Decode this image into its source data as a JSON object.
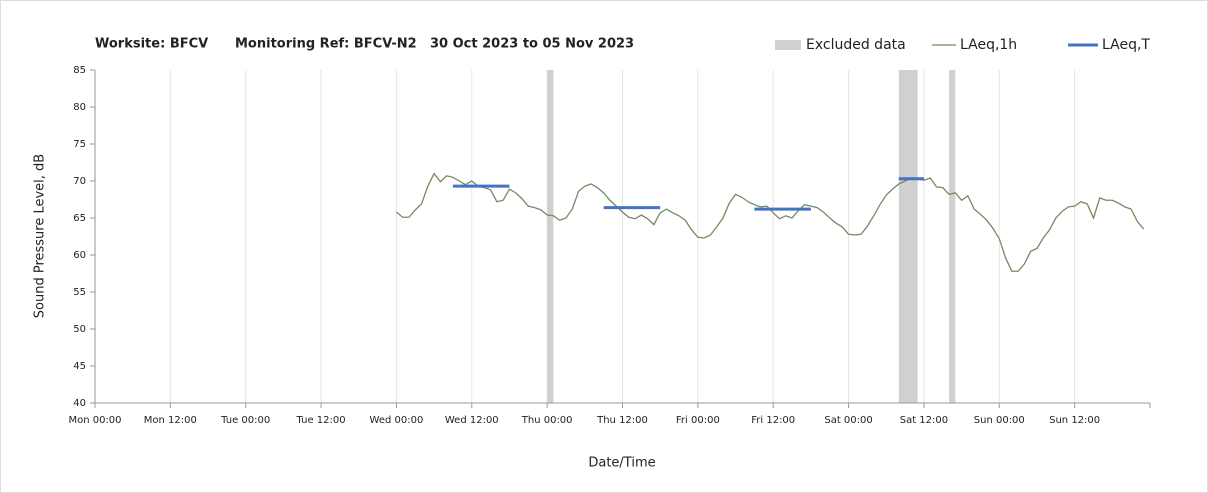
{
  "chart_data": {
    "type": "line",
    "title_parts": [
      "Worksite: BFCV",
      "Monitoring Ref: BFCV-N2",
      "30 Oct 2023 to 05 Nov 2023"
    ],
    "xlabel": "Date/Time",
    "ylabel": "Sound Pressure Level, dB",
    "xlim": [
      0,
      168
    ],
    "xticks": [
      {
        "value": 0,
        "label": "Mon 00:00"
      },
      {
        "value": 12,
        "label": "Mon 12:00"
      },
      {
        "value": 24,
        "label": "Tue 00:00"
      },
      {
        "value": 36,
        "label": "Tue 12:00"
      },
      {
        "value": 48,
        "label": "Wed 00:00"
      },
      {
        "value": 60,
        "label": "Wed 12:00"
      },
      {
        "value": 72,
        "label": "Thu 00:00"
      },
      {
        "value": 84,
        "label": "Thu 12:00"
      },
      {
        "value": 96,
        "label": "Fri 00:00"
      },
      {
        "value": 108,
        "label": "Fri 12:00"
      },
      {
        "value": 120,
        "label": "Sat 00:00"
      },
      {
        "value": 132,
        "label": "Sat 12:00"
      },
      {
        "value": 144,
        "label": "Sun 00:00"
      },
      {
        "value": 156,
        "label": "Sun 12:00"
      }
    ],
    "ylim": [
      40,
      85
    ],
    "yticks": [
      40,
      45,
      50,
      55,
      60,
      65,
      70,
      75,
      80,
      85
    ],
    "grid": true,
    "legend": "top-right",
    "excluded": {
      "name": "Excluded data",
      "color": "#d0d0d0",
      "ranges": [
        [
          72,
          73
        ],
        [
          128,
          131
        ],
        [
          136,
          137
        ]
      ]
    },
    "series": [
      {
        "name": "LAeq,1h",
        "color": "#748b62",
        "x": [
          48,
          49,
          50,
          51,
          52,
          53,
          54,
          55,
          56,
          57,
          58,
          59,
          60,
          61,
          62,
          63,
          64,
          65,
          66,
          67,
          68,
          69,
          70,
          71,
          72,
          73,
          74,
          75,
          76,
          77,
          78,
          79,
          80,
          81,
          82,
          83,
          84,
          85,
          86,
          87,
          88,
          89,
          90,
          91,
          92,
          93,
          94,
          95,
          96,
          97,
          98,
          99,
          100,
          101,
          102,
          103,
          104,
          105,
          106,
          107,
          108,
          109,
          110,
          111,
          112,
          113,
          114,
          115,
          116,
          117,
          118,
          119,
          120,
          121,
          122,
          123,
          124,
          125,
          126,
          127,
          128,
          129,
          130,
          131,
          132,
          133,
          134,
          135,
          136,
          137,
          138,
          139,
          140,
          141,
          142,
          143,
          144,
          145,
          146,
          147,
          148,
          149,
          150,
          151,
          152,
          153,
          154,
          155,
          156,
          157,
          158,
          159,
          160,
          161,
          162,
          163,
          164,
          165,
          166,
          167
        ],
        "values": [
          65.8,
          65.1,
          65.1,
          66.1,
          66.9,
          69.3,
          71.0,
          69.9,
          70.7,
          70.5,
          70.0,
          69.5,
          70.0,
          69.3,
          69.1,
          68.8,
          67.2,
          67.4,
          68.9,
          68.4,
          67.6,
          66.6,
          66.4,
          66.1,
          65.4,
          65.3,
          64.7,
          65.0,
          66.2,
          68.6,
          69.3,
          69.6,
          69.1,
          68.4,
          67.4,
          66.6,
          65.8,
          65.1,
          64.9,
          65.4,
          64.9,
          64.1,
          65.7,
          66.2,
          65.7,
          65.3,
          64.7,
          63.4,
          62.4,
          62.3,
          62.7,
          63.8,
          65.0,
          67.0,
          68.2,
          67.8,
          67.2,
          66.8,
          66.5,
          66.6,
          65.7,
          64.9,
          65.3,
          65.0,
          66.0,
          66.8,
          66.6,
          66.4,
          65.8,
          65.0,
          64.3,
          63.8,
          62.8,
          62.7,
          62.8,
          63.9,
          65.3,
          66.8,
          68.1,
          68.9,
          69.6,
          70.0,
          70.4,
          70.3,
          70.1,
          70.4,
          69.2,
          69.1,
          68.2,
          68.4,
          67.4,
          68.0,
          66.2,
          65.5,
          64.7,
          63.6,
          62.2,
          59.6,
          57.8,
          57.8,
          58.8,
          60.5,
          60.9,
          62.3,
          63.4,
          65.0,
          65.9,
          66.5,
          66.6,
          67.2,
          66.9,
          65.0,
          67.7,
          67.4,
          67.4,
          67.0,
          66.5,
          66.2,
          64.5,
          63.5
        ]
      }
    ],
    "periods": {
      "name": "LAeq,T",
      "color": "#4472c4",
      "ranges": [
        [
          57,
          66
        ],
        [
          81,
          90
        ],
        [
          105,
          114
        ],
        [
          128,
          132
        ]
      ],
      "values": [
        69.3,
        66.4,
        66.2,
        70.3
      ]
    }
  }
}
